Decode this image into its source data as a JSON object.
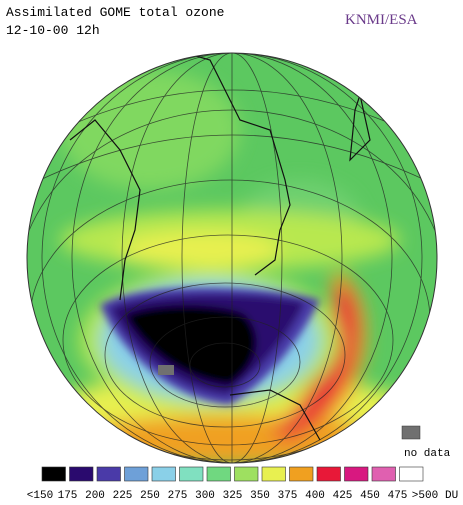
{
  "header": {
    "title": "Assimilated GOME total ozone",
    "date": "12-10-00 12h",
    "credit": "KNMI/ESA"
  },
  "no_data": {
    "label": "no data",
    "color": "#707070"
  },
  "legend": {
    "colors": [
      "#000000",
      "#2a0a6e",
      "#4a3aa8",
      "#6ea0d8",
      "#8ad0e8",
      "#80e0c0",
      "#70d880",
      "#9ee060",
      "#e8f050",
      "#f0a020",
      "#e81838",
      "#d81880",
      "#e060b0",
      "#ffffff"
    ],
    "labels": [
      "<150",
      "175",
      "200",
      "225",
      "250",
      "275",
      "300",
      "325",
      "350",
      "375",
      "400",
      "425",
      "450",
      "475",
      ">500"
    ],
    "unit": "DU"
  }
}
